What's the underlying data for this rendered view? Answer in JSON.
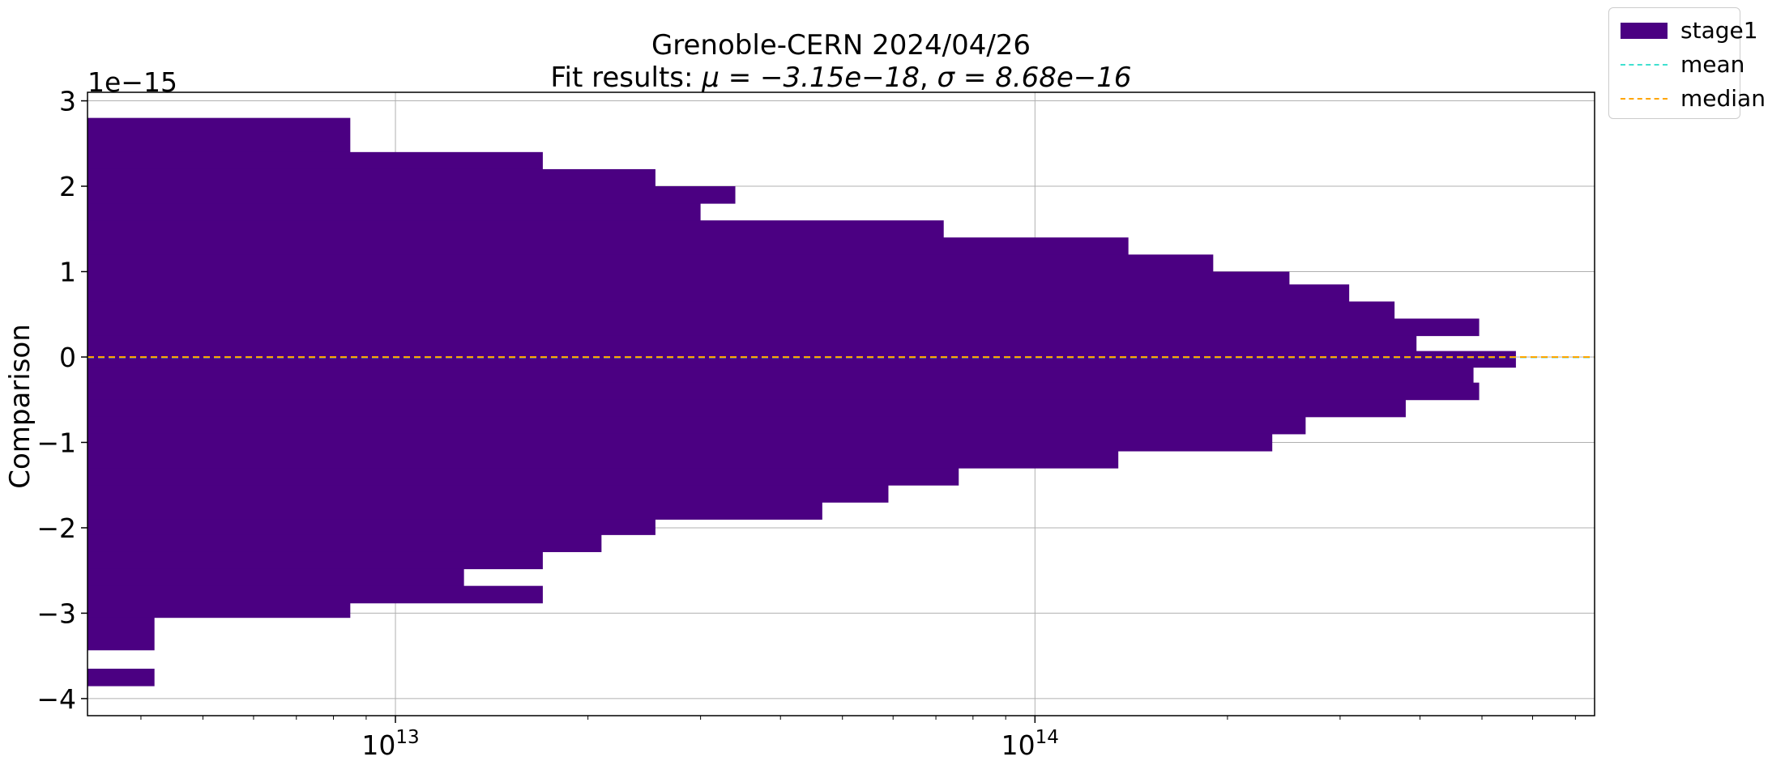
{
  "chart_data": {
    "type": "bar",
    "orientation": "horizontal",
    "title": "Grenoble-CERN 2024/04/26",
    "title_plain": "Grenoble-CERN 2024/04/26",
    "subtitle_prefix": "Fit results: ",
    "subtitle_mu_lhs": "μ",
    "subtitle_mu_val": "−3.15e−18",
    "subtitle_sigma_lhs": "σ",
    "subtitle_sigma_val": "8.68e−16",
    "ylabel": "Comparison",
    "xlabel": "",
    "offset_text": "1e−15",
    "xscale": "log",
    "xlim": [
      3300000000000.0,
      750000000000000.0
    ],
    "ylim": [
      -4.2,
      3.1
    ],
    "y_ticks": [
      -4,
      -3,
      -2,
      -1,
      0,
      1,
      2,
      3
    ],
    "y_tick_labels": [
      "−4",
      "−3",
      "−2",
      "−1",
      "0",
      "1",
      "2",
      "3"
    ],
    "x_ticks": [
      10000000000000.0,
      100000000000000.0
    ],
    "x_tick_labels": [
      {
        "base": "10",
        "exp": "13"
      },
      {
        "base": "10",
        "exp": "14"
      }
    ],
    "grid": true,
    "legend_position": "outside-top-right",
    "colors": {
      "bars": "#4b0082",
      "mean": "#40e0d0",
      "median": "#ffa500",
      "grid": "#b0b0b0"
    },
    "series": [
      {
        "name": "stage1",
        "kind": "histogram",
        "bins": [
          {
            "y0": 2.8,
            "y1": 2.4,
            "x": 8500000000000.0
          },
          {
            "y0": 2.4,
            "y1": 2.2,
            "x": 17000000000000.0
          },
          {
            "y0": 2.2,
            "y1": 2.0,
            "x": 25500000000000.0
          },
          {
            "y0": 2.0,
            "y1": 1.8,
            "x": 34000000000000.0
          },
          {
            "y0": 1.8,
            "y1": 1.6,
            "x": 30000000000000.0
          },
          {
            "y0": 1.6,
            "y1": 1.4,
            "x": 72000000000000.0
          },
          {
            "y0": 1.4,
            "y1": 1.2,
            "x": 140000000000000.0
          },
          {
            "y0": 1.2,
            "y1": 1.0,
            "x": 190000000000000.0
          },
          {
            "y0": 1.0,
            "y1": 0.85,
            "x": 250000000000000.0
          },
          {
            "y0": 0.85,
            "y1": 0.65,
            "x": 310000000000000.0
          },
          {
            "y0": 0.65,
            "y1": 0.45,
            "x": 365000000000000.0
          },
          {
            "y0": 0.45,
            "y1": 0.25,
            "x": 495000000000000.0
          },
          {
            "y0": 0.25,
            "y1": 0.07,
            "x": 395000000000000.0
          },
          {
            "y0": 0.07,
            "y1": -0.12,
            "x": 565000000000000.0
          },
          {
            "y0": -0.12,
            "y1": -0.3,
            "x": 485000000000000.0
          },
          {
            "y0": -0.3,
            "y1": -0.5,
            "x": 495000000000000.0
          },
          {
            "y0": -0.5,
            "y1": -0.7,
            "x": 380000000000000.0
          },
          {
            "y0": -0.7,
            "y1": -0.9,
            "x": 265000000000000.0
          },
          {
            "y0": -0.9,
            "y1": -1.1,
            "x": 235000000000000.0
          },
          {
            "y0": -1.1,
            "y1": -1.3,
            "x": 135000000000000.0
          },
          {
            "y0": -1.3,
            "y1": -1.5,
            "x": 76000000000000.0
          },
          {
            "y0": -1.5,
            "y1": -1.7,
            "x": 59000000000000.0
          },
          {
            "y0": -1.7,
            "y1": -1.9,
            "x": 46500000000000.0
          },
          {
            "y0": -1.9,
            "y1": -2.08,
            "x": 25500000000000.0
          },
          {
            "y0": -2.08,
            "y1": -2.28,
            "x": 21000000000000.0
          },
          {
            "y0": -2.28,
            "y1": -2.48,
            "x": 17000000000000.0
          },
          {
            "y0": -2.48,
            "y1": -2.68,
            "x": 12800000000000.0
          },
          {
            "y0": -2.68,
            "y1": -2.88,
            "x": 17000000000000.0
          },
          {
            "y0": -2.88,
            "y1": -3.05,
            "x": 8500000000000.0
          },
          {
            "y0": -3.05,
            "y1": -3.43,
            "x": 4200000000000.0
          },
          {
            "y0": -3.43,
            "y1": -3.65,
            "x": 3300000000000.0
          },
          {
            "y0": -3.65,
            "y1": -3.85,
            "x": 4200000000000.0
          }
        ]
      },
      {
        "name": "mean",
        "kind": "hline",
        "y": -0.00315,
        "style": "dashed"
      },
      {
        "name": "median",
        "kind": "hline",
        "y": 0.0,
        "style": "dashed"
      }
    ]
  },
  "legend": {
    "items": [
      {
        "label": "stage1",
        "kind": "patch",
        "color": "#4b0082"
      },
      {
        "label": "mean",
        "kind": "line",
        "color": "#40e0d0"
      },
      {
        "label": "median",
        "kind": "line",
        "color": "#ffa500"
      }
    ]
  }
}
